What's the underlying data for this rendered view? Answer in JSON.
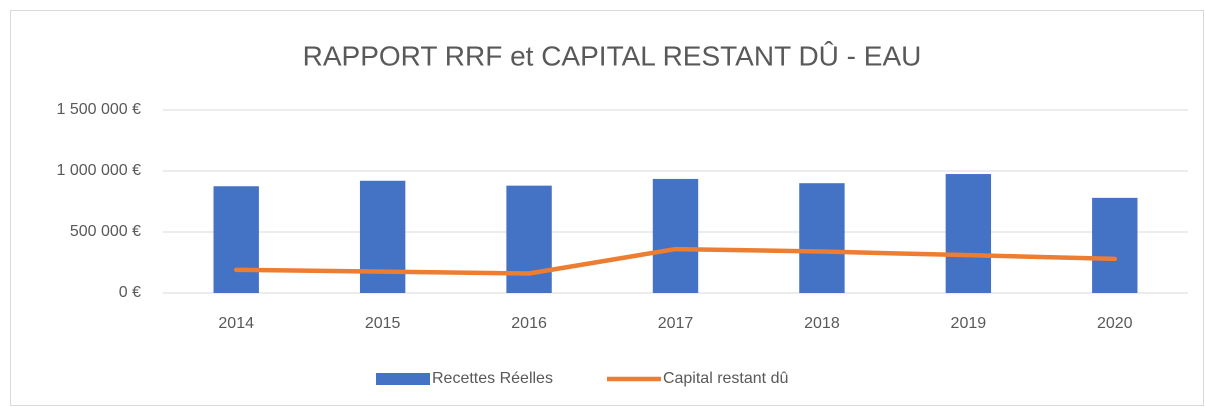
{
  "chart_data": {
    "type": "combo",
    "title": "RAPPORT RRF et CAPITAL RESTANT DÛ - EAU",
    "categories": [
      "2014",
      "2015",
      "2016",
      "2017",
      "2018",
      "2019",
      "2020"
    ],
    "series": [
      {
        "name": "Recettes Réelles",
        "type": "bar",
        "color": "#4472c4",
        "values": [
          875000,
          920000,
          880000,
          935000,
          900000,
          975000,
          780000
        ]
      },
      {
        "name": "Capital restant dû",
        "type": "line",
        "color": "#ed7d31",
        "values": [
          190000,
          175000,
          160000,
          360000,
          340000,
          310000,
          280000
        ]
      }
    ],
    "ylim": [
      0,
      1500000
    ],
    "yticks": [
      {
        "value": 0,
        "label": "0 €"
      },
      {
        "value": 500000,
        "label": "500 000 €"
      },
      {
        "value": 1000000,
        "label": "1 000 000 €"
      },
      {
        "value": 1500000,
        "label": "1 500 000 €"
      }
    ],
    "grid": true,
    "legend": "bottom"
  }
}
